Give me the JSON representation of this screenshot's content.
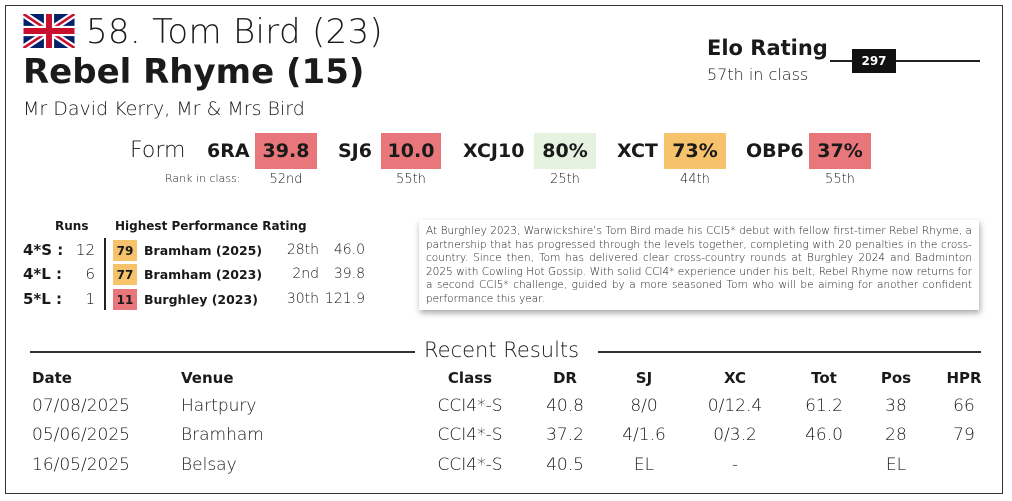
{
  "header": {
    "flag_icon": "union-jack-flag-icon",
    "rider": "58. Tom Bird (23)",
    "horse": "Rebel Rhyme (15)",
    "owners": "Mr David Kerry, Mr & Mrs Bird"
  },
  "elo": {
    "title": "Elo Rating",
    "subtitle": "57th in class",
    "value": "297"
  },
  "form": {
    "label": "Form",
    "rank_label": "Rank in class:",
    "items": [
      {
        "code": "6RA",
        "value": "39.8",
        "rank": "52nd",
        "color": "#e9767a"
      },
      {
        "code": "SJ6",
        "value": "10.0",
        "rank": "55th",
        "color": "#e9767a"
      },
      {
        "code": "XCJ10",
        "value": "80%",
        "rank": "25th",
        "color": "#e4f2df"
      },
      {
        "code": "XCT",
        "value": "73%",
        "rank": "44th",
        "color": "#f6c26b"
      },
      {
        "code": "OBP6",
        "value": "37%",
        "rank": "55th",
        "color": "#e9767a"
      }
    ]
  },
  "hpr": {
    "runs_header": "Runs",
    "hpr_header": "Highest Performance Rating",
    "rows": [
      {
        "level": "4*S :",
        "runs": "12",
        "hpr": "79",
        "color": "#f6c26b",
        "event": "Bramham (2025)",
        "pos": "28th",
        "score": "46.0"
      },
      {
        "level": "4*L :",
        "runs": "6",
        "hpr": "77",
        "color": "#f6c26b",
        "event": "Bramham (2023)",
        "pos": "2nd",
        "score": "39.8"
      },
      {
        "level": "5*L :",
        "runs": "1",
        "hpr": "11",
        "color": "#e9767a",
        "event": "Burghley (2023)",
        "pos": "30th",
        "score": "121.9"
      }
    ]
  },
  "bio": "At Burghley 2023, Warwickshire’s Tom Bird made his CCI5* debut with fellow first-timer Rebel Rhyme, a partnership that has progressed through the levels together, completing with 20 penalties in the cross-country. Since then, Tom has delivered clear cross-country rounds at Burghley 2024 and Badminton 2025 with Cowling Hot Gossip. With solid CCI4* experience under his belt, Rebel Rhyme now returns for a second CCI5* challenge, guided by a more seasoned Tom who will be aiming for another confident performance this year.",
  "results": {
    "title": "Recent Results",
    "headers": {
      "date": "Date",
      "venue": "Venue",
      "class": "Class",
      "dr": "DR",
      "sj": "SJ",
      "xc": "XC",
      "tot": "Tot",
      "pos": "Pos",
      "hpr": "HPR"
    },
    "rows": [
      {
        "date": "07/08/2025",
        "venue": "Hartpury",
        "class": "CCI4*-S",
        "dr": "40.8",
        "sj": "8/0",
        "xc": "0/12.4",
        "tot": "61.2",
        "pos": "38",
        "hpr": "66"
      },
      {
        "date": "05/06/2025",
        "venue": "Bramham",
        "class": "CCI4*-S",
        "dr": "37.2",
        "sj": "4/1.6",
        "xc": "0/3.2",
        "tot": "46.0",
        "pos": "28",
        "hpr": "79"
      },
      {
        "date": "16/05/2025",
        "venue": "Belsay",
        "class": "CCI4*-S",
        "dr": "40.5",
        "sj": "EL",
        "xc": "-",
        "tot": "",
        "pos": "EL",
        "hpr": ""
      }
    ]
  }
}
